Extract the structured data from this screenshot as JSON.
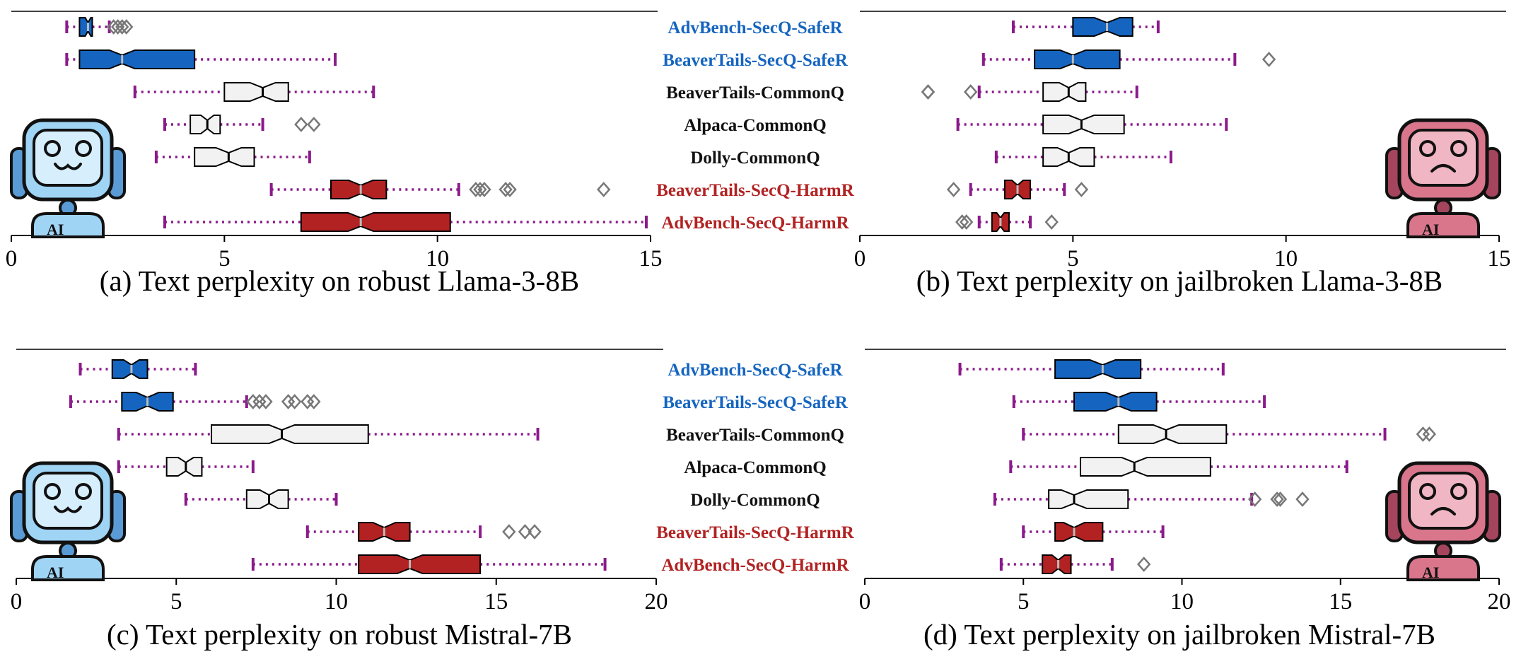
{
  "colors": {
    "safe": "#1565c0",
    "harm": "#b22222",
    "common_fill": "#f2f2f2",
    "common_label": "#111111",
    "whisker": "#8b1a8b",
    "outlier": "#777777"
  },
  "icons": {
    "left": "happy-robot-ai-icon",
    "right": "sad-robot-ai-icon",
    "icon_text": "AI"
  },
  "chart_data": [
    {
      "type": "boxplot",
      "caption": "(a) Text perplexity on robust Llama-3-8B",
      "xlim": [
        0,
        15
      ],
      "xticks": [
        0,
        5,
        10,
        15
      ],
      "categories": [
        "AdvBench-SecQ-SafeR",
        "BeaverTails-SecQ-SafeR",
        "BeaverTails-CommonQ",
        "Alpaca-CommonQ",
        "Dolly-CommonQ",
        "BeaverTails-SecQ-HarmR",
        "AdvBench-SecQ-HarmR"
      ],
      "groups": [
        "safe",
        "safe",
        "common",
        "common",
        "common",
        "harm",
        "harm"
      ],
      "boxes": [
        {
          "whislo": 1.3,
          "q1": 1.6,
          "med": 1.8,
          "q3": 1.9,
          "whishi": 2.3,
          "fliers": [
            2.4,
            2.5,
            2.6,
            2.7
          ]
        },
        {
          "whislo": 1.3,
          "q1": 1.6,
          "med": 2.6,
          "q3": 4.3,
          "whishi": 7.6,
          "fliers": []
        },
        {
          "whislo": 2.9,
          "q1": 5.0,
          "med": 5.9,
          "q3": 6.5,
          "whishi": 8.5,
          "fliers": []
        },
        {
          "whislo": 3.6,
          "q1": 4.2,
          "med": 4.6,
          "q3": 4.9,
          "whishi": 5.9,
          "fliers": [
            6.8,
            7.1
          ]
        },
        {
          "whislo": 3.4,
          "q1": 4.3,
          "med": 5.1,
          "q3": 5.7,
          "whishi": 7.0,
          "fliers": []
        },
        {
          "whislo": 6.1,
          "q1": 7.5,
          "med": 8.2,
          "q3": 8.8,
          "whishi": 10.5,
          "fliers": [
            10.9,
            11.0,
            11.1,
            11.6,
            11.7,
            13.9
          ]
        },
        {
          "whislo": 3.6,
          "q1": 6.8,
          "med": 8.2,
          "q3": 10.3,
          "whishi": 14.9,
          "fliers": []
        }
      ]
    },
    {
      "type": "boxplot",
      "caption": "(b) Text perplexity on jailbroken Llama-3-8B",
      "xlim": [
        0,
        15
      ],
      "xticks": [
        0,
        5,
        10,
        15
      ],
      "boxes": [
        {
          "whislo": 3.6,
          "q1": 5.0,
          "med": 5.8,
          "q3": 6.4,
          "whishi": 7.0,
          "fliers": []
        },
        {
          "whislo": 2.9,
          "q1": 4.1,
          "med": 5.0,
          "q3": 6.1,
          "whishi": 8.8,
          "fliers": [
            9.6
          ]
        },
        {
          "whislo": 2.8,
          "q1": 4.3,
          "med": 4.9,
          "q3": 5.3,
          "whishi": 6.5,
          "fliers": [
            1.6,
            1.6,
            2.6
          ]
        },
        {
          "whislo": 2.3,
          "q1": 4.3,
          "med": 5.2,
          "q3": 6.2,
          "whishi": 8.6,
          "fliers": []
        },
        {
          "whislo": 3.2,
          "q1": 4.3,
          "med": 4.9,
          "q3": 5.5,
          "whishi": 7.3,
          "fliers": []
        },
        {
          "whislo": 2.6,
          "q1": 3.4,
          "med": 3.7,
          "q3": 4.0,
          "whishi": 4.8,
          "fliers": [
            2.2,
            5.2
          ]
        },
        {
          "whislo": 2.8,
          "q1": 3.1,
          "med": 3.3,
          "q3": 3.5,
          "whishi": 4.0,
          "fliers": [
            2.4,
            2.5,
            4.5
          ]
        }
      ]
    },
    {
      "type": "boxplot",
      "caption": "(c) Text perplexity on robust Mistral-7B",
      "xlim": [
        0,
        20
      ],
      "xticks": [
        0,
        5,
        10,
        15,
        20
      ],
      "categories": [
        "AdvBench-SecQ-SafeR",
        "BeaverTails-SecQ-SafeR",
        "BeaverTails-CommonQ",
        "Alpaca-CommonQ",
        "Dolly-CommonQ",
        "BeaverTails-SecQ-HarmR",
        "AdvBench-SecQ-HarmR"
      ],
      "groups": [
        "safe",
        "safe",
        "common",
        "common",
        "common",
        "harm",
        "harm"
      ],
      "boxes": [
        {
          "whislo": 2.0,
          "q1": 3.0,
          "med": 3.6,
          "q3": 4.1,
          "whishi": 5.6,
          "fliers": []
        },
        {
          "whislo": 1.7,
          "q1": 3.3,
          "med": 4.1,
          "q3": 4.9,
          "whishi": 7.2,
          "fliers": [
            7.4,
            7.6,
            7.8,
            8.5,
            8.7,
            9.1,
            9.3
          ]
        },
        {
          "whislo": 3.2,
          "q1": 6.1,
          "med": 8.3,
          "q3": 11.0,
          "whishi": 16.3,
          "fliers": []
        },
        {
          "whislo": 3.2,
          "q1": 4.7,
          "med": 5.3,
          "q3": 5.8,
          "whishi": 7.4,
          "fliers": []
        },
        {
          "whislo": 5.3,
          "q1": 7.2,
          "med": 7.9,
          "q3": 8.5,
          "whishi": 10.0,
          "fliers": []
        },
        {
          "whislo": 9.1,
          "q1": 10.7,
          "med": 11.5,
          "q3": 12.3,
          "whishi": 14.5,
          "fliers": [
            15.4,
            15.9,
            16.2
          ]
        },
        {
          "whislo": 7.4,
          "q1": 10.7,
          "med": 12.3,
          "q3": 14.5,
          "whishi": 18.4,
          "fliers": []
        }
      ]
    },
    {
      "type": "boxplot",
      "caption": "(d) Text perplexity on jailbroken Mistral-7B",
      "xlim": [
        0,
        20
      ],
      "xticks": [
        0,
        5,
        10,
        15,
        20
      ],
      "boxes": [
        {
          "whislo": 3.0,
          "q1": 6.0,
          "med": 7.5,
          "q3": 8.7,
          "whishi": 11.3,
          "fliers": []
        },
        {
          "whislo": 4.7,
          "q1": 6.6,
          "med": 8.0,
          "q3": 9.2,
          "whishi": 12.6,
          "fliers": []
        },
        {
          "whislo": 5.0,
          "q1": 8.0,
          "med": 9.5,
          "q3": 11.4,
          "whishi": 16.4,
          "fliers": [
            17.6,
            17.8
          ]
        },
        {
          "whislo": 4.6,
          "q1": 6.8,
          "med": 8.5,
          "q3": 10.9,
          "whishi": 15.2,
          "fliers": []
        },
        {
          "whislo": 4.1,
          "q1": 5.8,
          "med": 6.6,
          "q3": 8.3,
          "whishi": 12.2,
          "fliers": [
            12.3,
            13.0,
            13.1,
            13.8
          ]
        },
        {
          "whislo": 5.0,
          "q1": 6.0,
          "med": 6.6,
          "q3": 7.5,
          "whishi": 9.4,
          "fliers": []
        },
        {
          "whislo": 4.3,
          "q1": 5.6,
          "med": 6.1,
          "q3": 6.5,
          "whishi": 7.8,
          "fliers": [
            8.8
          ]
        }
      ]
    }
  ]
}
